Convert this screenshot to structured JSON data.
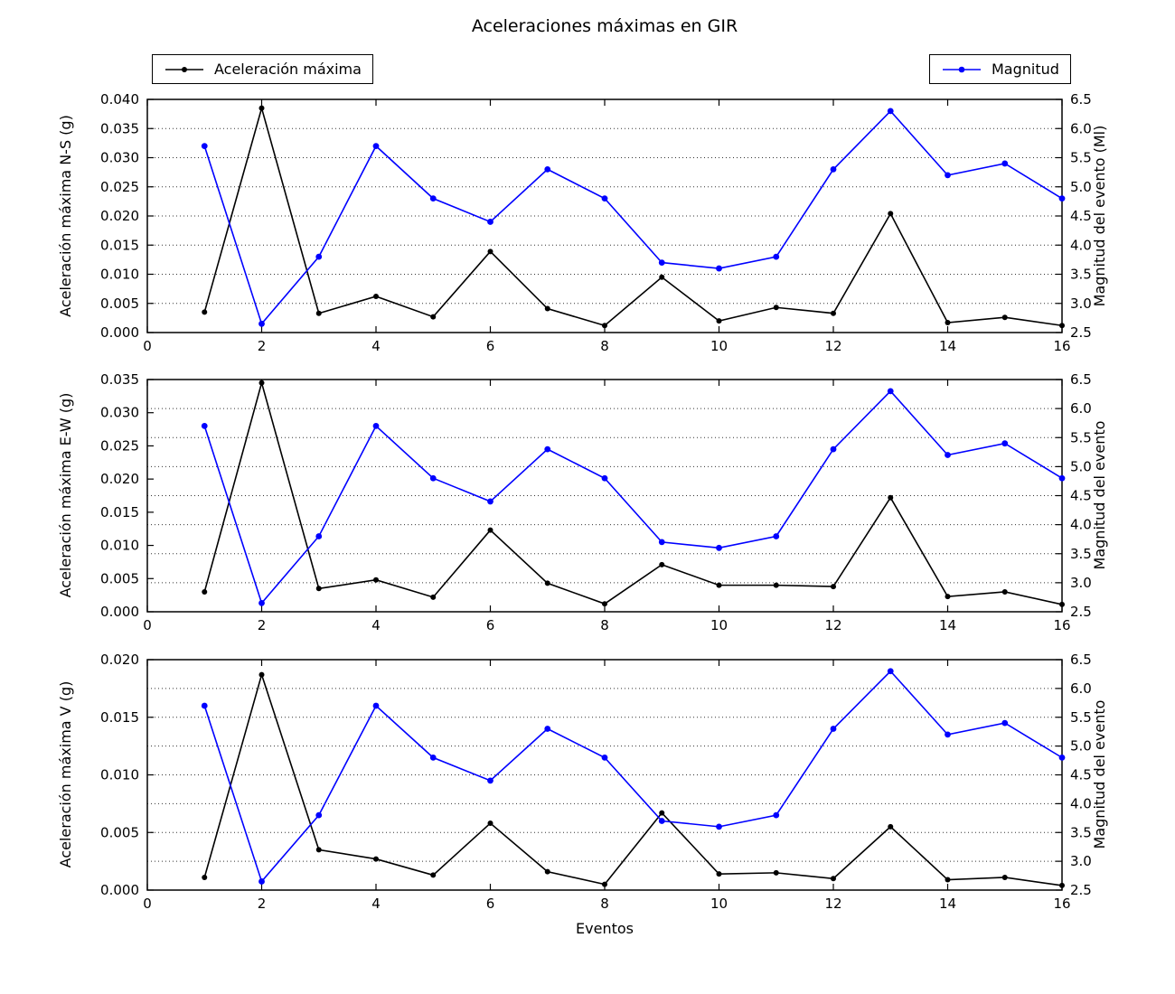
{
  "figure": {
    "title": "Aceleraciones máximas en GIR",
    "xlabel": "Eventos",
    "background": "#ffffff"
  },
  "legends": [
    {
      "label": "Aceleración máxima",
      "color": "#000000"
    },
    {
      "label": "Magnitud",
      "color": "#0000ff"
    }
  ],
  "chart_data": [
    {
      "type": "line",
      "subplot": "N-S",
      "x": [
        1,
        2,
        3,
        4,
        5,
        6,
        7,
        8,
        9,
        10,
        11,
        12,
        13,
        14,
        15,
        16
      ],
      "xlim": [
        0,
        16
      ],
      "x_ticks": [
        0,
        2,
        4,
        6,
        8,
        10,
        12,
        14,
        16
      ],
      "grid": "horizontal dotted lines at right-axis ticks",
      "left_axis": {
        "label": "Aceleración máxima N-S (g)",
        "lim": [
          0.0,
          0.04
        ],
        "ticks": [
          0.0,
          0.005,
          0.01,
          0.015,
          0.02,
          0.025,
          0.03,
          0.035,
          0.04
        ],
        "decimals": 3
      },
      "right_axis": {
        "label": "Magnitud del evento (Ml)",
        "lim": [
          2.5,
          6.5
        ],
        "ticks": [
          2.5,
          3.0,
          3.5,
          4.0,
          4.5,
          5.0,
          5.5,
          6.0,
          6.5
        ],
        "decimals": 1
      },
      "series": [
        {
          "name": "Aceleración máxima",
          "axis": "left",
          "color": "#000000",
          "values": [
            0.0035,
            0.0385,
            0.0033,
            0.0062,
            0.0027,
            0.0139,
            0.0041,
            0.0012,
            0.0095,
            0.002,
            0.0043,
            0.0033,
            0.0204,
            0.0017,
            0.0026,
            0.0012
          ]
        },
        {
          "name": "Magnitud",
          "axis": "right",
          "color": "#0000ff",
          "values": [
            5.7,
            2.65,
            3.8,
            5.7,
            4.8,
            4.4,
            5.3,
            4.8,
            3.7,
            3.6,
            3.8,
            5.3,
            6.3,
            5.2,
            5.4,
            4.8
          ]
        }
      ]
    },
    {
      "type": "line",
      "subplot": "E-W",
      "x": [
        1,
        2,
        3,
        4,
        5,
        6,
        7,
        8,
        9,
        10,
        11,
        12,
        13,
        14,
        15,
        16
      ],
      "xlim": [
        0,
        16
      ],
      "x_ticks": [
        0,
        2,
        4,
        6,
        8,
        10,
        12,
        14,
        16
      ],
      "grid": "horizontal dotted lines at right-axis ticks",
      "left_axis": {
        "label": "Aceleración máxima E-W (g)",
        "lim": [
          0.0,
          0.035
        ],
        "ticks": [
          0.0,
          0.005,
          0.01,
          0.015,
          0.02,
          0.025,
          0.03,
          0.035
        ],
        "decimals": 3
      },
      "right_axis": {
        "label": "Magnitud del evento",
        "lim": [
          2.5,
          6.5
        ],
        "ticks": [
          2.5,
          3.0,
          3.5,
          4.0,
          4.5,
          5.0,
          5.5,
          6.0,
          6.5
        ],
        "decimals": 1
      },
      "series": [
        {
          "name": "Aceleración máxima",
          "axis": "left",
          "color": "#000000",
          "values": [
            0.003,
            0.0345,
            0.0035,
            0.0048,
            0.0022,
            0.0123,
            0.0043,
            0.0012,
            0.0071,
            0.004,
            0.004,
            0.0038,
            0.0172,
            0.0023,
            0.003,
            0.0011
          ]
        },
        {
          "name": "Magnitud",
          "axis": "right",
          "color": "#0000ff",
          "values": [
            5.7,
            2.65,
            3.8,
            5.7,
            4.8,
            4.4,
            5.3,
            4.8,
            3.7,
            3.6,
            3.8,
            5.3,
            6.3,
            5.2,
            5.4,
            4.8
          ]
        }
      ]
    },
    {
      "type": "line",
      "subplot": "V",
      "x": [
        1,
        2,
        3,
        4,
        5,
        6,
        7,
        8,
        9,
        10,
        11,
        12,
        13,
        14,
        15,
        16
      ],
      "xlim": [
        0,
        16
      ],
      "x_ticks": [
        0,
        2,
        4,
        6,
        8,
        10,
        12,
        14,
        16
      ],
      "grid": "horizontal dotted lines at right-axis ticks",
      "left_axis": {
        "label": "Aceleración máxima V (g)",
        "lim": [
          0.0,
          0.02
        ],
        "ticks": [
          0.0,
          0.005,
          0.01,
          0.015,
          0.02
        ],
        "decimals": 3
      },
      "right_axis": {
        "label": "Magnitud del evento",
        "lim": [
          2.5,
          6.5
        ],
        "ticks": [
          2.5,
          3.0,
          3.5,
          4.0,
          4.5,
          5.0,
          5.5,
          6.0,
          6.5
        ],
        "decimals": 1
      },
      "series": [
        {
          "name": "Aceleración máxima",
          "axis": "left",
          "color": "#000000",
          "values": [
            0.0011,
            0.0187,
            0.0035,
            0.0027,
            0.0013,
            0.0058,
            0.0016,
            0.0005,
            0.0067,
            0.0014,
            0.0015,
            0.001,
            0.0055,
            0.0009,
            0.0011,
            0.0004
          ]
        },
        {
          "name": "Magnitud",
          "axis": "right",
          "color": "#0000ff",
          "values": [
            5.7,
            2.65,
            3.8,
            5.7,
            4.8,
            4.4,
            5.3,
            4.8,
            3.7,
            3.6,
            3.8,
            5.3,
            6.3,
            5.2,
            5.4,
            4.8
          ]
        }
      ]
    }
  ]
}
